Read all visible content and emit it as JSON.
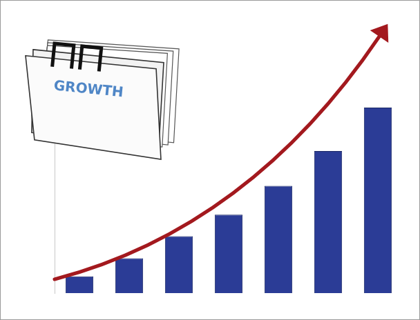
{
  "chart_data": {
    "type": "bar",
    "categories": [
      null,
      null,
      null,
      null,
      null,
      null,
      null
    ],
    "values": [
      25,
      52,
      85,
      117,
      160,
      212,
      277
    ],
    "color": "#2b3c96",
    "ylim": [
      0,
      280
    ],
    "grid": false,
    "tick_labels": false,
    "annotations": [
      "GROWTH"
    ]
  }
}
